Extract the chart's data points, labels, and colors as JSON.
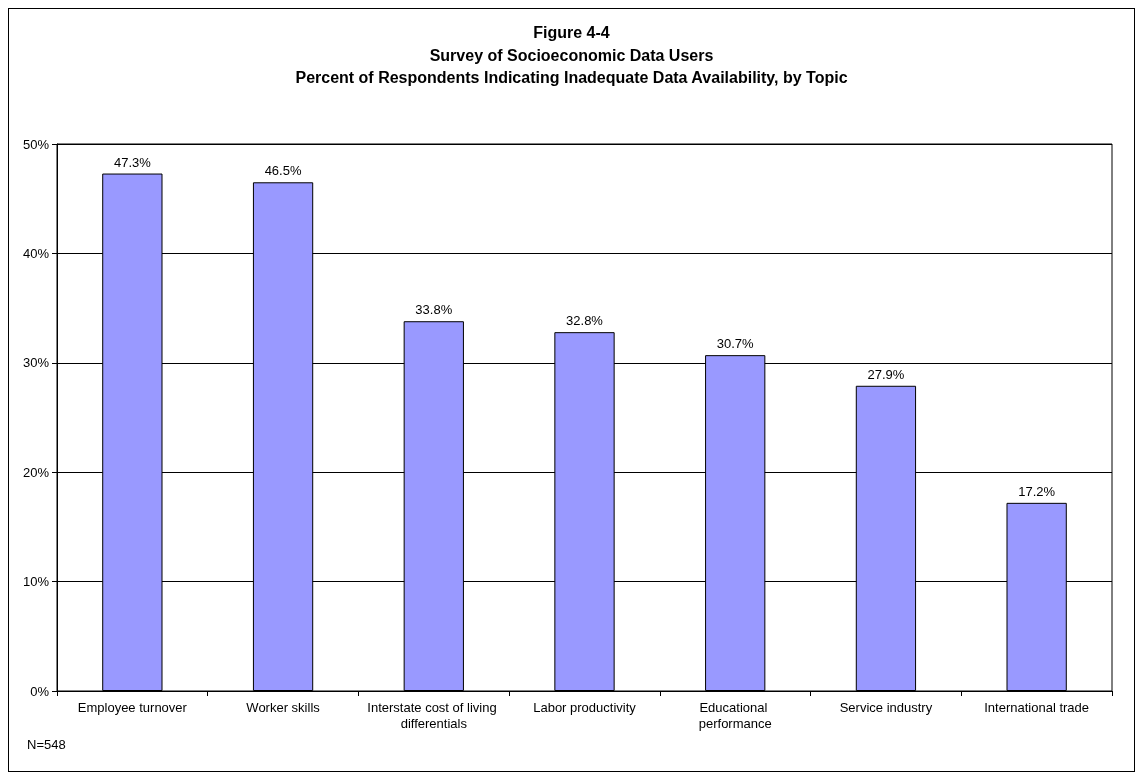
{
  "chart_data": {
    "type": "bar",
    "title": "Figure 4-4",
    "subtitle": "Survey of Socioeconomic Data Users\nPercent of Respondents Indicating Inadequate Data Availability, by Topic",
    "categories": [
      "Employee turnover",
      "Worker skills",
      "Interstate cost of living differentials",
      "Labor productivity",
      "Educational performance",
      "Service industry",
      "International trade"
    ],
    "values": [
      47.3,
      46.5,
      33.8,
      32.8,
      30.7,
      27.9,
      17.2
    ],
    "value_labels": [
      "47.3%",
      "46.5%",
      "33.8%",
      "32.8%",
      "30.7%",
      "27.9%",
      "17.2%"
    ],
    "color": "#9999ff",
    "ylim": [
      0,
      50
    ],
    "yticks": [
      {
        "value": 0,
        "label": "0%"
      },
      {
        "value": 10,
        "label": "10%"
      },
      {
        "value": 20,
        "label": "20%"
      },
      {
        "value": 30,
        "label": "30%"
      },
      {
        "value": 40,
        "label": "40%"
      },
      {
        "value": 50,
        "label": "50%"
      }
    ],
    "grid": "y",
    "annotations": [
      "N=548"
    ]
  }
}
